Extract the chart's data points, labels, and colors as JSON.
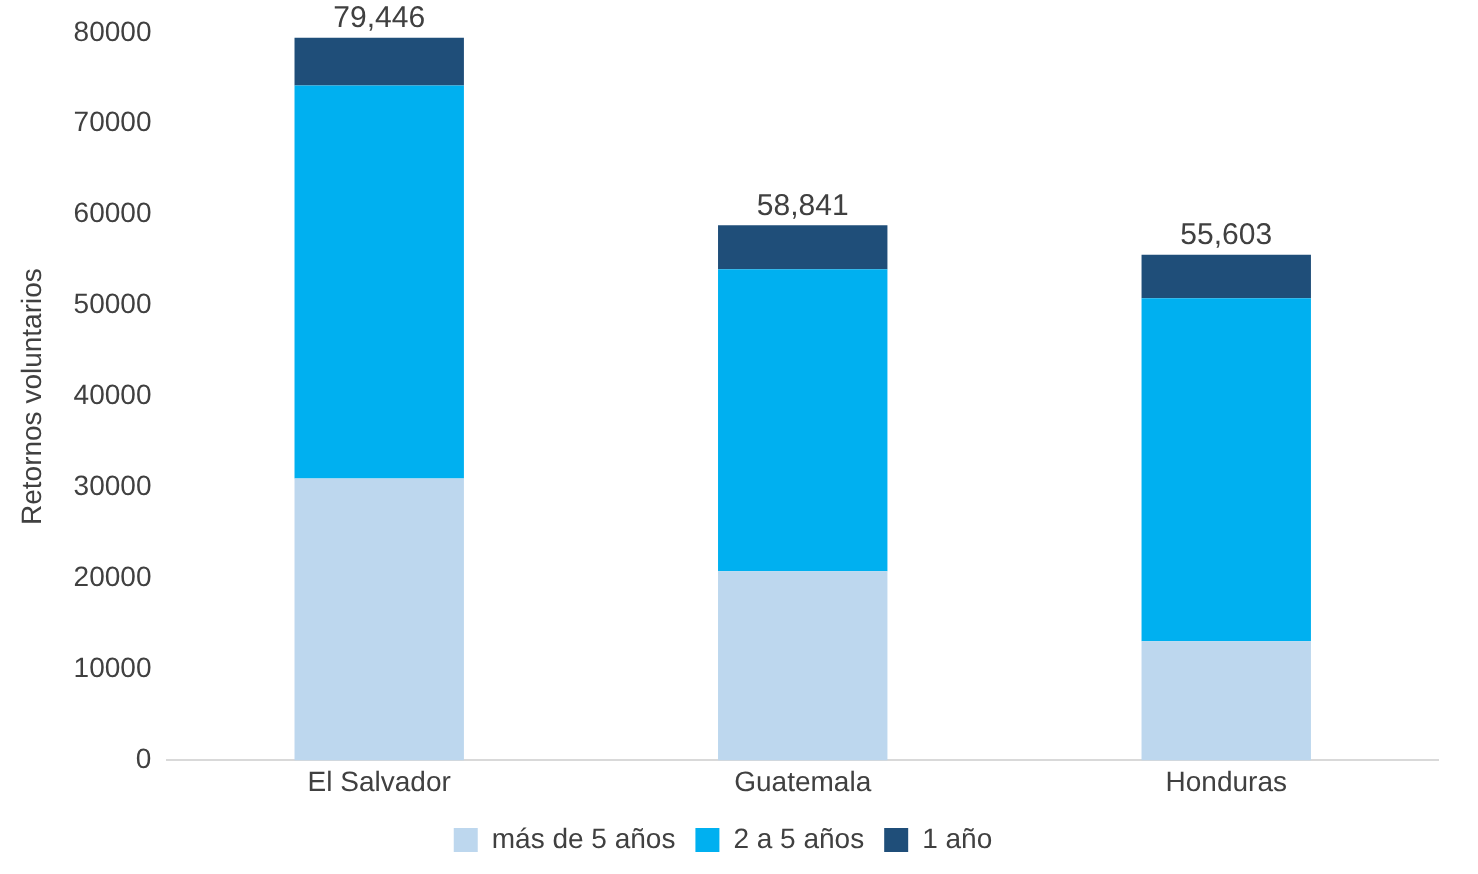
{
  "chart_data": {
    "type": "bar",
    "stacked": true,
    "ylabel": "Retornos voluntarios",
    "categories": [
      "El Salvador",
      "Guatemala",
      "Honduras"
    ],
    "series": [
      {
        "name": "más de 5 años",
        "color": "#bdd7ee",
        "values": [
          31000,
          20800,
          13100
        ]
      },
      {
        "name": "2 a 5 años",
        "color": "#00b0f0",
        "values": [
          43200,
          33200,
          37700
        ]
      },
      {
        "name": "1 año",
        "color": "#1f4e79",
        "values": [
          5246,
          4841,
          4803
        ]
      }
    ],
    "totals": [
      "79,446",
      "58,841",
      "55,603"
    ],
    "ylim": [
      0,
      80000
    ],
    "yticks": [
      0,
      10000,
      20000,
      30000,
      40000,
      50000,
      60000,
      70000,
      80000
    ],
    "grid": false,
    "legend": "bottom"
  }
}
